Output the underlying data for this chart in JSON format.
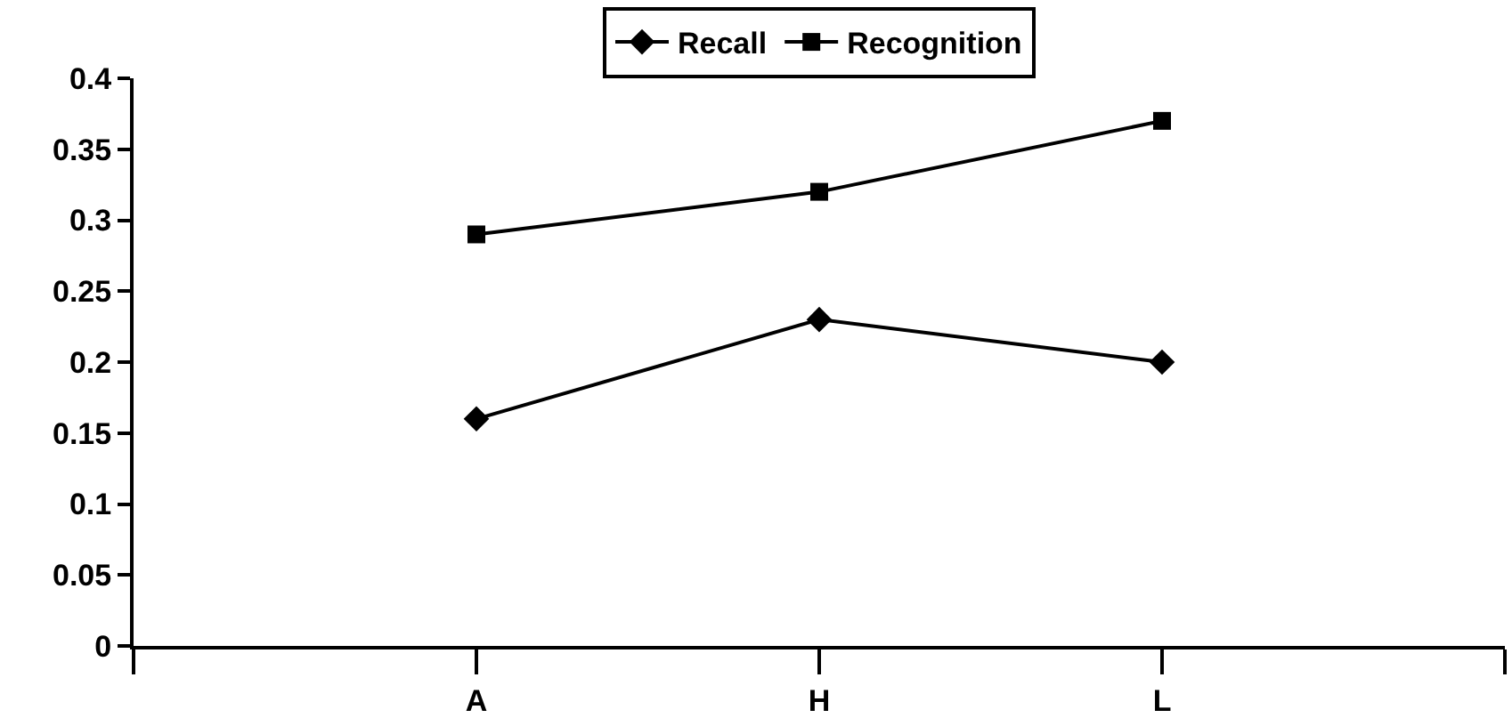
{
  "chart_data": {
    "type": "line",
    "categories": [
      "A",
      "H",
      "L"
    ],
    "series": [
      {
        "name": "Recall",
        "color": "#000000",
        "marker": "diamond",
        "values": [
          0.16,
          0.23,
          0.2
        ]
      },
      {
        "name": "Recognition",
        "color": "#000000",
        "marker": "square",
        "values": [
          0.29,
          0.32,
          0.37
        ]
      }
    ],
    "ylim": [
      0,
      0.4
    ],
    "yticks": [
      0,
      0.05,
      0.1,
      0.15,
      0.2,
      0.25,
      0.3,
      0.35,
      0.4
    ],
    "grid": false,
    "legend": "top",
    "line_style": "solid"
  }
}
